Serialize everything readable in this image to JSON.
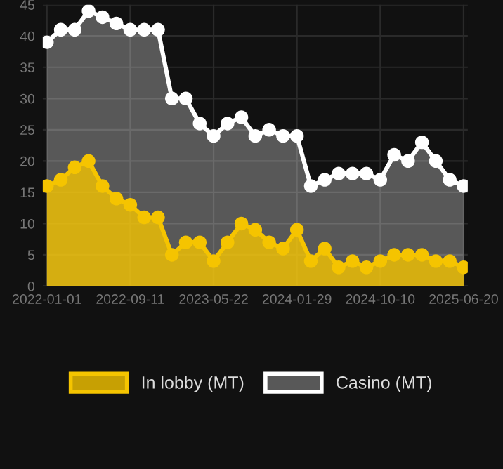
{
  "chart_data": {
    "type": "area",
    "categories": [
      "2022-01-01",
      null,
      null,
      null,
      null,
      null,
      "2022-09-11",
      null,
      null,
      null,
      null,
      null,
      "2023-05-22",
      null,
      null,
      null,
      null,
      null,
      "2024-01-29",
      null,
      null,
      null,
      null,
      null,
      "2024-10-10",
      null,
      null,
      null,
      null,
      null,
      "2025-06-20"
    ],
    "series": [
      {
        "name": "Casino (MT)",
        "color": "#ffffff",
        "values": [
          39,
          41,
          41,
          44,
          43,
          42,
          41,
          41,
          41,
          30,
          30,
          26,
          24,
          26,
          27,
          24,
          25,
          24,
          24,
          16,
          17,
          18,
          18,
          18,
          17,
          21,
          20,
          23,
          20,
          17,
          16
        ]
      },
      {
        "name": "In lobby (MT)",
        "color": "#f5c400",
        "values": [
          16,
          17,
          19,
          20,
          16,
          14,
          13,
          11,
          11,
          5,
          7,
          7,
          4,
          7,
          10,
          9,
          7,
          6,
          9,
          4,
          6,
          3,
          4,
          3,
          4,
          5,
          5,
          5,
          4,
          4,
          3
        ]
      }
    ],
    "ylim": [
      0,
      45
    ],
    "yticks": [
      0,
      5,
      10,
      15,
      20,
      25,
      30,
      35,
      40,
      45
    ],
    "grid": true,
    "legend": "bottom",
    "marker": "circle",
    "line_style": "solid"
  }
}
